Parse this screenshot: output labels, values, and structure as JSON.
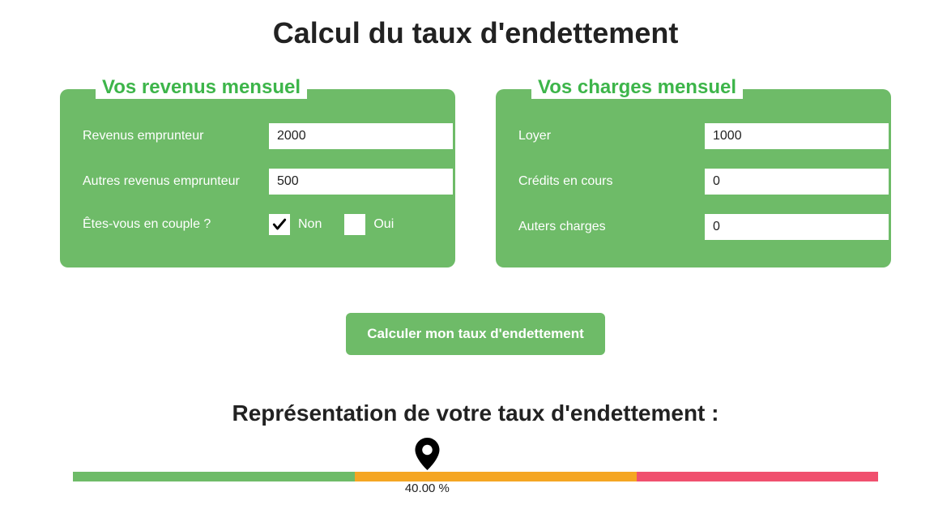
{
  "title": "Calcul du taux d'endettement",
  "revenus_panel": {
    "legend": "Vos revenus mensuel",
    "rows": {
      "revenus_emprunteur": {
        "label": "Revenus emprunteur",
        "value": "2000",
        "unit": "€"
      },
      "autres_revenus": {
        "label": "Autres revenus emprunteur",
        "value": "500",
        "unit": "€"
      },
      "couple": {
        "label": "Êtes-vous en couple ?",
        "option_non": "Non",
        "option_oui": "Oui",
        "non_checked": true,
        "oui_checked": false
      }
    }
  },
  "charges_panel": {
    "legend": "Vos charges mensuel",
    "rows": {
      "loyer": {
        "label": "Loyer",
        "value": "1000",
        "unit": "€"
      },
      "credits": {
        "label": "Crédits en cours",
        "value": "0",
        "unit": "€"
      },
      "autres_charges": {
        "label": "Auters charges",
        "value": "0",
        "unit": "€"
      }
    }
  },
  "calculate_button_label": "Calculer mon taux d'endettement",
  "representation": {
    "title": "Représentation de votre taux d'endettement :",
    "value_label": "40.00 %",
    "marker_position_percent": 44,
    "segments": {
      "green_width_percent": 35,
      "orange_width_percent": 35,
      "red_width_percent": 30
    },
    "colors": {
      "green": "#6ebb68",
      "orange": "#f5a623",
      "red": "#f0506e"
    }
  },
  "theme": {
    "panel_background": "#6ebb68",
    "legend_color": "#3db54a",
    "text_color": "#222222"
  }
}
